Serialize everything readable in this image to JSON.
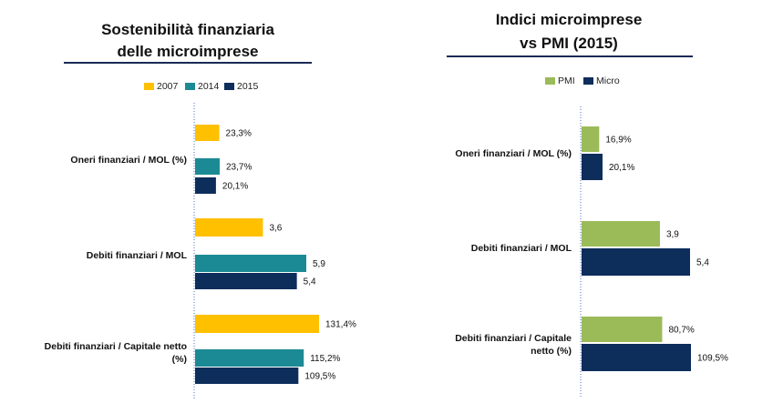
{
  "colors": {
    "y2007": "#FFC000",
    "y2014": "#1B8A95",
    "y2015": "#0D2D5B",
    "pmi": "#9BBB59",
    "micro": "#0D2D5B",
    "axis": "#4472C4"
  },
  "chart_data": [
    {
      "type": "bar",
      "orientation": "horizontal",
      "title_lines": [
        "Sostenibilità finanziaria",
        "delle microimprese"
      ],
      "legend": [
        "2007",
        "2014",
        "2015"
      ],
      "legend_placement": "top",
      "categories": [
        {
          "lines": [
            "Oneri finanziari / MOL (%)"
          ],
          "bars": [
            {
              "series": "2007",
              "value": 23.3,
              "label": "23,3%"
            },
            {
              "series": "2014",
              "value": 23.7,
              "label": "23,7%"
            },
            {
              "series": "2015",
              "value": 20.1,
              "label": "20,1%"
            }
          ]
        },
        {
          "lines": [
            "Debiti finanziari / MOL"
          ],
          "bars": [
            {
              "series": "2007",
              "value": 3.6,
              "label": "3,6"
            },
            {
              "series": "2014",
              "value": 5.9,
              "label": "5,9"
            },
            {
              "series": "2015",
              "value": 5.4,
              "label": "5,4"
            }
          ]
        },
        {
          "lines": [
            "Debiti finanziari / Capitale netto",
            "(%)"
          ],
          "bars": [
            {
              "series": "2007",
              "value": 131.4,
              "label": "131,4%"
            },
            {
              "series": "2014",
              "value": 115.2,
              "label": "115,2%"
            },
            {
              "series": "2015",
              "value": 109.5,
              "label": "109,5%"
            }
          ]
        }
      ]
    },
    {
      "type": "bar",
      "orientation": "horizontal",
      "title_lines": [
        "Indici microimprese",
        "vs PMI (2015)"
      ],
      "legend": [
        "PMI",
        "Micro"
      ],
      "legend_placement": "top",
      "categories": [
        {
          "lines": [
            "Oneri finanziari / MOL (%)"
          ],
          "bars": [
            {
              "series": "PMI",
              "value": 16.9,
              "label": "16,9%"
            },
            {
              "series": "Micro",
              "value": 20.1,
              "label": "20,1%"
            }
          ]
        },
        {
          "lines": [
            "Debiti finanziari / MOL"
          ],
          "bars": [
            {
              "series": "PMI",
              "value": 3.9,
              "label": "3,9"
            },
            {
              "series": "Micro",
              "value": 5.4,
              "label": "5,4"
            }
          ]
        },
        {
          "lines": [
            "Debiti finanziari / Capitale",
            "netto (%)"
          ],
          "bars": [
            {
              "series": "PMI",
              "value": 80.7,
              "label": "80,7%"
            },
            {
              "series": "Micro",
              "value": 109.5,
              "label": "109,5%"
            }
          ]
        }
      ]
    }
  ]
}
